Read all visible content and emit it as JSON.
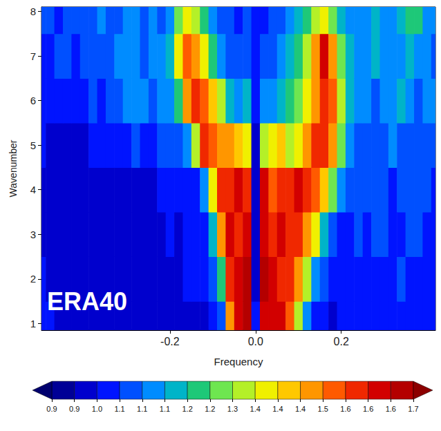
{
  "chart_data": {
    "type": "heatmap",
    "annotation": "ERA40",
    "x_label": "Frequency",
    "y_label": "Wavenumber",
    "xlim": [
      -0.5,
      0.42
    ],
    "xticks": [
      -0.2,
      {
        "value": 0,
        "label": "0.0"
      },
      0.2
    ],
    "ylim": [
      0.85,
      8.1
    ],
    "yticks": [
      1,
      2,
      3,
      4,
      5,
      6,
      7,
      8
    ],
    "grid": false,
    "x": [
      -0.5,
      -0.48,
      -0.46,
      -0.44,
      -0.42,
      -0.4,
      -0.38,
      -0.36,
      -0.34,
      -0.32,
      -0.3,
      -0.28,
      -0.26,
      -0.24,
      -0.22,
      -0.2,
      -0.18,
      -0.16,
      -0.14,
      -0.12,
      -0.1,
      -0.08,
      -0.06,
      -0.04,
      -0.02,
      0,
      0.02,
      0.04,
      0.06,
      0.08,
      0.1,
      0.12,
      0.14,
      0.16,
      0.18,
      0.2,
      0.22,
      0.24,
      0.26,
      0.28,
      0.3,
      0.32,
      0.34,
      0.36,
      0.38,
      0.4,
      0.42
    ],
    "y": [
      1,
      2,
      3,
      4,
      5,
      6,
      7,
      8
    ],
    "cells": [
      [
        1.02,
        1.0,
        0.98,
        0.97,
        0.96,
        0.96,
        0.95,
        0.96,
        0.97,
        0.96,
        0.95,
        0.96,
        0.97,
        0.96,
        0.95,
        0.96,
        0.97,
        0.98,
        0.98,
        0.99,
        1.02,
        1.05,
        1.45,
        1.62,
        1.66,
        1.0,
        1.64,
        1.62,
        1.6,
        1.5,
        1.3,
        1.12,
        1.04,
        1.0,
        0.99,
        1.0,
        1.01,
        1.0,
        1.02,
        1.03,
        1.02,
        1.01,
        1.03,
        1.04,
        1.02,
        1.01,
        1.0
      ],
      [
        1.0,
        0.98,
        0.97,
        0.96,
        0.95,
        0.96,
        0.97,
        0.96,
        0.95,
        0.96,
        0.97,
        0.98,
        0.96,
        0.97,
        0.98,
        0.99,
        0.98,
        1.0,
        1.0,
        1.02,
        1.05,
        1.2,
        1.55,
        1.64,
        1.66,
        0.98,
        1.66,
        1.62,
        1.58,
        1.55,
        1.45,
        1.3,
        1.12,
        1.05,
        1.02,
        1.01,
        1.03,
        1.02,
        1.04,
        1.03,
        1.02,
        1.04,
        1.05,
        1.03,
        1.02,
        1.04,
        1.03
      ],
      [
        0.99,
        0.97,
        0.96,
        0.95,
        0.96,
        0.97,
        0.96,
        0.95,
        0.97,
        0.98,
        0.97,
        0.96,
        0.98,
        0.99,
        0.98,
        1.0,
        0.99,
        1.01,
        1.02,
        1.04,
        1.15,
        1.48,
        1.6,
        1.58,
        1.62,
        0.97,
        1.62,
        1.55,
        1.6,
        1.58,
        1.55,
        1.48,
        1.35,
        1.15,
        1.06,
        1.04,
        1.03,
        1.05,
        1.04,
        1.06,
        1.05,
        1.03,
        1.04,
        1.06,
        1.05,
        1.04,
        1.03
      ],
      [
        0.98,
        0.97,
        0.96,
        0.97,
        0.96,
        0.95,
        0.96,
        0.97,
        0.98,
        0.97,
        0.96,
        0.98,
        0.99,
        0.98,
        1.0,
        1.01,
        1.0,
        1.02,
        1.03,
        1.1,
        1.35,
        1.58,
        1.55,
        1.6,
        1.55,
        0.95,
        1.6,
        1.5,
        1.55,
        1.58,
        1.6,
        1.55,
        1.52,
        1.42,
        1.25,
        1.1,
        1.06,
        1.05,
        1.07,
        1.05,
        1.06,
        1.04,
        1.05,
        1.07,
        1.06,
        1.05,
        1.04
      ],
      [
        1.0,
        0.99,
        0.98,
        0.97,
        0.98,
        0.99,
        1.0,
        1.02,
        1.0,
        1.01,
        1.03,
        1.05,
        1.02,
        1.04,
        1.05,
        1.06,
        1.08,
        1.12,
        1.3,
        1.55,
        1.5,
        1.45,
        1.45,
        1.4,
        1.35,
        0.98,
        1.3,
        1.35,
        1.4,
        1.3,
        1.38,
        1.45,
        1.55,
        1.55,
        1.45,
        1.25,
        1.1,
        1.06,
        1.07,
        1.08,
        1.06,
        1.1,
        1.07,
        1.05,
        1.08,
        1.06,
        1.07
      ],
      [
        1.02,
        1.0,
        1.01,
        1.03,
        1.02,
        1.04,
        1.05,
        1.03,
        1.06,
        1.08,
        1.1,
        1.12,
        1.1,
        1.08,
        1.1,
        1.12,
        1.2,
        1.45,
        1.55,
        1.5,
        1.42,
        1.3,
        1.18,
        1.1,
        1.15,
        1.0,
        1.1,
        1.12,
        1.15,
        1.2,
        1.25,
        1.35,
        1.45,
        1.55,
        1.5,
        1.3,
        1.15,
        1.1,
        1.12,
        1.08,
        1.1,
        1.12,
        1.15,
        1.1,
        1.08,
        1.12,
        1.1
      ],
      [
        1.04,
        1.02,
        1.05,
        1.06,
        1.04,
        1.08,
        1.06,
        1.05,
        1.08,
        1.1,
        1.12,
        1.1,
        1.08,
        1.1,
        1.12,
        1.15,
        1.35,
        1.52,
        1.48,
        1.35,
        1.2,
        1.12,
        1.08,
        1.05,
        1.08,
        1.0,
        1.05,
        1.08,
        1.1,
        1.15,
        1.2,
        1.3,
        1.45,
        1.6,
        1.45,
        1.25,
        1.15,
        1.1,
        1.12,
        1.15,
        1.12,
        1.1,
        1.14,
        1.18,
        1.12,
        1.1,
        1.08
      ],
      [
        1.05,
        1.06,
        1.04,
        1.08,
        1.06,
        1.05,
        1.08,
        1.1,
        1.06,
        1.08,
        1.1,
        1.12,
        1.08,
        1.1,
        1.08,
        1.12,
        1.25,
        1.35,
        1.3,
        1.2,
        1.1,
        1.05,
        1.06,
        1.04,
        1.05,
        1.0,
        1.04,
        1.06,
        1.08,
        1.1,
        1.15,
        1.2,
        1.3,
        1.35,
        1.25,
        1.15,
        1.1,
        1.12,
        1.1,
        1.15,
        1.12,
        1.1,
        1.15,
        1.2,
        1.22,
        1.12,
        1.1
      ]
    ],
    "colorbar": {
      "range": [
        0.9,
        1.7
      ],
      "ticks": [
        0.9,
        {
          "value": 0.95,
          "label": "0.9"
        },
        {
          "value": 1.0,
          "label": "1.0"
        },
        {
          "value": 1.05,
          "label": "1.1"
        },
        1.1,
        {
          "value": 1.15,
          "label": "1.1"
        },
        1.2,
        {
          "value": 1.25,
          "label": "1.2"
        },
        1.3,
        {
          "value": 1.35,
          "label": "1.4"
        },
        1.4,
        {
          "value": 1.45,
          "label": "1.4"
        },
        1.5,
        {
          "value": 1.55,
          "label": "1.6"
        },
        1.6,
        {
          "value": 1.65,
          "label": "1.6"
        },
        1.7
      ],
      "colors": [
        "#00006e",
        "#000096",
        "#0000cd",
        "#0014ff",
        "#0050ff",
        "#008cff",
        "#00b4c8",
        "#1ec878",
        "#6ee650",
        "#b4f028",
        "#f0f000",
        "#ffc800",
        "#ff9600",
        "#ff5a00",
        "#f02800",
        "#d20000",
        "#b40000",
        "#8c0000"
      ]
    }
  }
}
